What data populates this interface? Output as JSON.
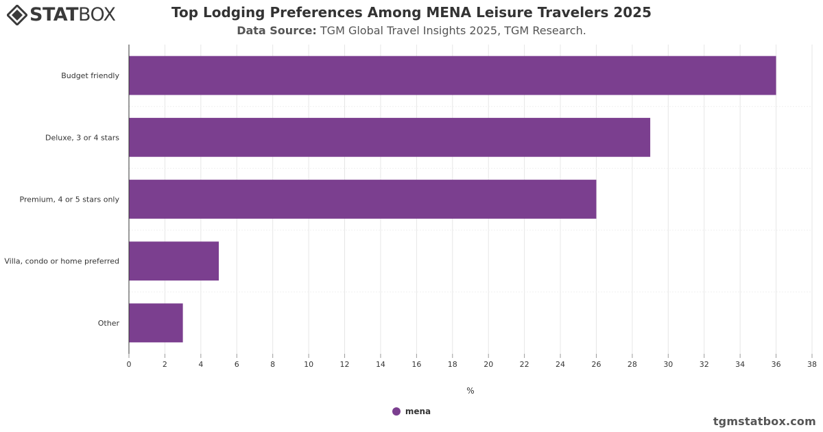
{
  "brand": {
    "logo_part1": "STAT",
    "logo_part2": "BOX",
    "footer": "tgmstatbox.com"
  },
  "header": {
    "title": "Top Lodging Preferences Among MENA Leisure Travelers 2025",
    "source_label": "Data Source:",
    "source_text": " TGM Global Travel Insights 2025, TGM Research."
  },
  "colors": {
    "bar": "#7b3f8f",
    "grid": "#e6e6e6",
    "axis": "#333333",
    "text": "#333333"
  },
  "chart_data": {
    "type": "bar",
    "orientation": "horizontal",
    "categories": [
      "Budget friendly",
      "Deluxe, 3 or 4 stars",
      "Premium, 4 or 5 stars only",
      "Villa, condo or home preferred",
      "Other"
    ],
    "series": [
      {
        "name": "mena",
        "values": [
          36,
          29,
          26,
          5,
          3
        ]
      }
    ],
    "xlabel": "%",
    "ylabel": "",
    "xlim": [
      0,
      38
    ],
    "xticks": [
      0,
      2,
      4,
      6,
      8,
      10,
      12,
      14,
      16,
      18,
      20,
      22,
      24,
      26,
      28,
      30,
      32,
      34,
      36,
      38
    ],
    "grid": true,
    "legend": "bottom-center"
  }
}
